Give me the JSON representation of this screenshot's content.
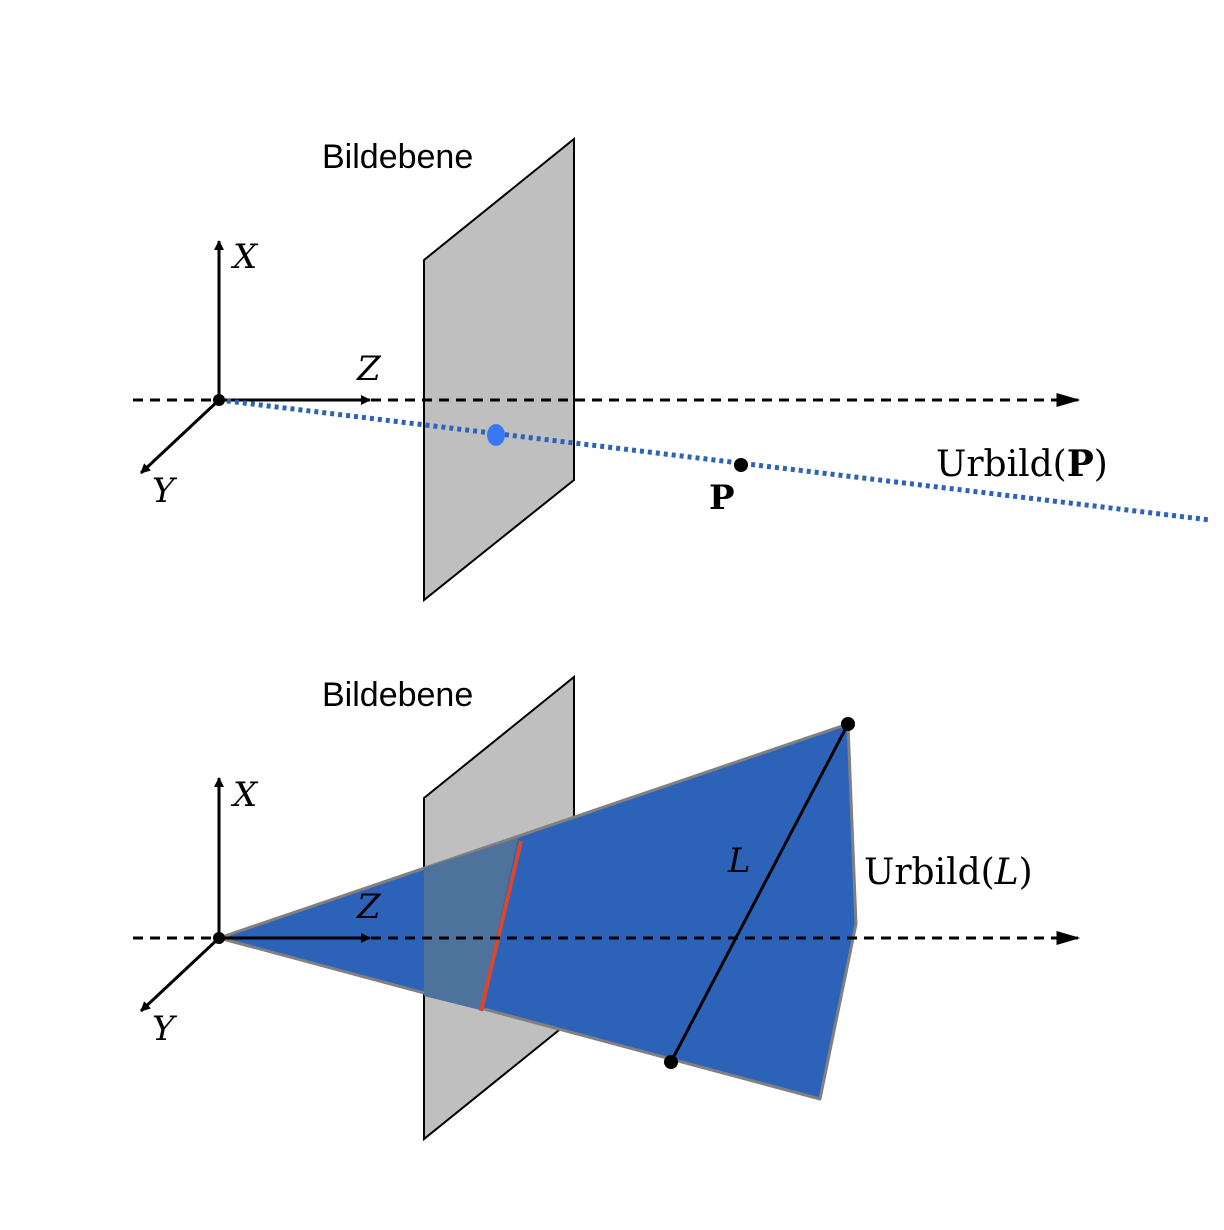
{
  "top": {
    "plane_label": "Bildebene",
    "axis_x": "X",
    "axis_y": "Y",
    "axis_z": "Z",
    "point_label": "P",
    "preimage_prefix": "Urbild(",
    "preimage_arg": "P",
    "preimage_suffix": ")"
  },
  "bottom": {
    "plane_label": "Bildebene",
    "axis_x": "X",
    "axis_y": "Y",
    "axis_z": "Z",
    "line_label": "L",
    "preimage_prefix": "Urbild(",
    "preimage_arg": "L",
    "preimage_suffix": ")"
  },
  "colors": {
    "plane_fill": "#bfbfbf",
    "ray_blue": "#2b63b8",
    "projection_point": "#3a78f2",
    "cone_fill": "#2c63b8",
    "plane_overlap": "#4d729b",
    "image_line": "#d9472c",
    "ink": "#000000"
  }
}
